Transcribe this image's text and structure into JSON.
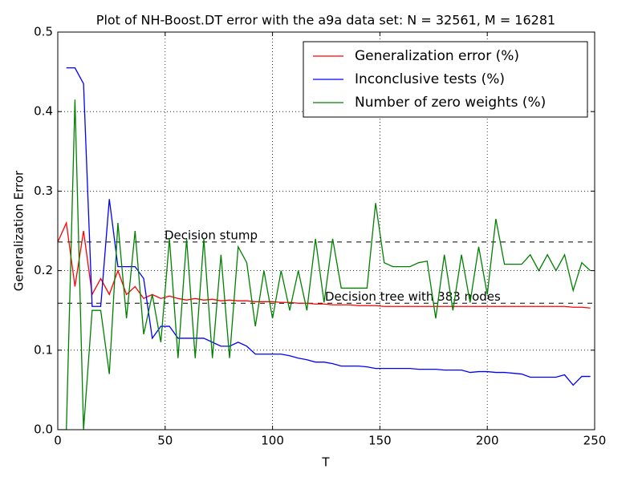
{
  "chart_data": {
    "type": "line",
    "title": "Plot of NH-Boost.DT error with the a9a data set: N = 32561, M = 16281",
    "xlabel": "T",
    "ylabel": "Generalization Error",
    "x": [
      0,
      4,
      8,
      12,
      16,
      20,
      24,
      28,
      32,
      36,
      40,
      44,
      48,
      52,
      56,
      60,
      64,
      68,
      72,
      76,
      80,
      84,
      88,
      92,
      96,
      100,
      104,
      108,
      112,
      116,
      120,
      124,
      128,
      132,
      136,
      140,
      144,
      148,
      152,
      156,
      160,
      164,
      168,
      172,
      176,
      180,
      184,
      188,
      192,
      196,
      200,
      204,
      208,
      212,
      216,
      220,
      224,
      228,
      232,
      236,
      240,
      244,
      248
    ],
    "series": [
      {
        "name": "Generalization error (%)",
        "color": "#ff0000",
        "values": [
          0.236,
          0.26,
          0.18,
          0.25,
          0.17,
          0.19,
          0.17,
          0.2,
          0.17,
          0.18,
          0.165,
          0.17,
          0.165,
          0.168,
          0.165,
          0.163,
          0.165,
          0.163,
          0.164,
          0.162,
          0.163,
          0.162,
          0.162,
          0.161,
          0.161,
          0.161,
          0.16,
          0.16,
          0.159,
          0.159,
          0.158,
          0.158,
          0.157,
          0.157,
          0.157,
          0.156,
          0.156,
          0.156,
          0.155,
          0.155,
          0.155,
          0.155,
          0.155,
          0.155,
          0.155,
          0.155,
          0.155,
          0.155,
          0.155,
          0.155,
          0.155,
          0.155,
          0.155,
          0.155,
          0.155,
          0.155,
          0.155,
          0.155,
          0.155,
          0.155,
          0.154,
          0.154,
          0.153
        ]
      },
      {
        "name": "Inconclusive tests (%)",
        "color": "#0000ff",
        "values": [
          null,
          0.455,
          0.455,
          0.435,
          0.155,
          0.155,
          0.29,
          0.205,
          0.205,
          0.205,
          0.19,
          0.115,
          0.13,
          0.13,
          0.115,
          0.115,
          0.115,
          0.115,
          0.11,
          0.105,
          0.105,
          0.11,
          0.105,
          0.095,
          0.095,
          0.095,
          0.095,
          0.093,
          0.09,
          0.088,
          0.085,
          0.085,
          0.083,
          0.08,
          0.08,
          0.08,
          0.079,
          0.077,
          0.077,
          0.077,
          0.077,
          0.077,
          0.076,
          0.076,
          0.076,
          0.075,
          0.075,
          0.075,
          0.072,
          0.073,
          0.073,
          0.072,
          0.072,
          0.071,
          0.07,
          0.066,
          0.066,
          0.066,
          0.066,
          0.069,
          0.056,
          0.067,
          0.067
        ]
      },
      {
        "name": "Number of zero weights (%)",
        "color": "#008000",
        "values": [
          0,
          0,
          0.415,
          0,
          0.15,
          0.15,
          0.07,
          0.26,
          0.14,
          0.25,
          0.12,
          0.17,
          0.11,
          0.24,
          0.09,
          0.24,
          0.09,
          0.24,
          0.09,
          0.22,
          0.09,
          0.23,
          0.21,
          0.13,
          0.2,
          0.14,
          0.2,
          0.15,
          0.2,
          0.15,
          0.24,
          0.16,
          0.24,
          0.178,
          0.178,
          0.178,
          0.178,
          0.285,
          0.21,
          0.205,
          0.205,
          0.205,
          0.21,
          0.212,
          0.14,
          0.22,
          0.15,
          0.22,
          0.16,
          0.23,
          0.17,
          0.265,
          0.208,
          0.208,
          0.208,
          0.22,
          0.2,
          0.22,
          0.2,
          0.22,
          0.175,
          0.21,
          0.2
        ]
      }
    ],
    "hlines": [
      {
        "value": 0.236,
        "label": "Decision stump"
      },
      {
        "value": 0.159,
        "label": "Decision tree with 383 nodes"
      }
    ],
    "xlim": [
      0,
      250
    ],
    "xticks": [
      0,
      50,
      100,
      150,
      200,
      250
    ],
    "ylim": [
      0,
      0.5
    ],
    "yticks": [
      {
        "value": 0,
        "label": "0.0"
      },
      0.1,
      0.2,
      0.3,
      0.4,
      0.5
    ],
    "grid": true,
    "legend": "upper right"
  }
}
